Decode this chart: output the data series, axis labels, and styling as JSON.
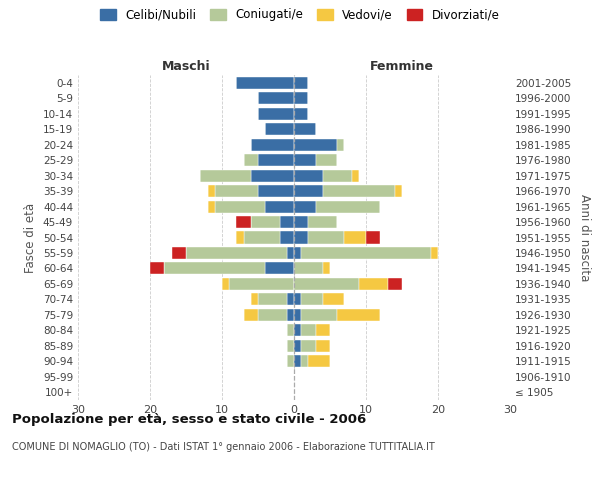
{
  "age_groups": [
    "100+",
    "95-99",
    "90-94",
    "85-89",
    "80-84",
    "75-79",
    "70-74",
    "65-69",
    "60-64",
    "55-59",
    "50-54",
    "45-49",
    "40-44",
    "35-39",
    "30-34",
    "25-29",
    "20-24",
    "15-19",
    "10-14",
    "5-9",
    "0-4"
  ],
  "birth_years": [
    "≤ 1905",
    "1906-1910",
    "1911-1915",
    "1916-1920",
    "1921-1925",
    "1926-1930",
    "1931-1935",
    "1936-1940",
    "1941-1945",
    "1946-1950",
    "1951-1955",
    "1956-1960",
    "1961-1965",
    "1966-1970",
    "1971-1975",
    "1976-1980",
    "1981-1985",
    "1986-1990",
    "1991-1995",
    "1996-2000",
    "2001-2005"
  ],
  "colors": {
    "celibi": "#3a6ea5",
    "coniugati": "#b5c99a",
    "vedovi": "#f5c842",
    "divorziati": "#cc2222"
  },
  "male": {
    "celibi": [
      0,
      0,
      0,
      0,
      0,
      1,
      1,
      0,
      4,
      1,
      2,
      2,
      4,
      5,
      6,
      5,
      6,
      4,
      5,
      5,
      8
    ],
    "coniugati": [
      0,
      0,
      1,
      1,
      1,
      4,
      4,
      9,
      14,
      14,
      5,
      4,
      7,
      6,
      7,
      2,
      0,
      0,
      0,
      0,
      0
    ],
    "vedovi": [
      0,
      0,
      0,
      0,
      0,
      2,
      1,
      1,
      0,
      0,
      1,
      0,
      1,
      1,
      0,
      0,
      0,
      0,
      0,
      0,
      0
    ],
    "divorziati": [
      0,
      0,
      0,
      0,
      0,
      0,
      0,
      0,
      2,
      2,
      0,
      2,
      0,
      0,
      0,
      0,
      0,
      0,
      0,
      0,
      0
    ]
  },
  "female": {
    "celibi": [
      0,
      0,
      1,
      1,
      1,
      1,
      1,
      0,
      0,
      1,
      2,
      2,
      3,
      4,
      4,
      3,
      6,
      3,
      2,
      2,
      2
    ],
    "coniugati": [
      0,
      0,
      1,
      2,
      2,
      5,
      3,
      9,
      4,
      18,
      5,
      4,
      9,
      10,
      4,
      3,
      1,
      0,
      0,
      0,
      0
    ],
    "vedovi": [
      0,
      0,
      3,
      2,
      2,
      6,
      3,
      4,
      1,
      1,
      3,
      0,
      0,
      1,
      1,
      0,
      0,
      0,
      0,
      0,
      0
    ],
    "divorziati": [
      0,
      0,
      0,
      0,
      0,
      0,
      0,
      2,
      0,
      0,
      2,
      0,
      0,
      0,
      0,
      0,
      0,
      0,
      0,
      0,
      0
    ]
  },
  "title": "Popolazione per età, sesso e stato civile - 2006",
  "subtitle": "COMUNE DI NOMAGLIO (TO) - Dati ISTAT 1° gennaio 2006 - Elaborazione TUTTITALIA.IT",
  "xlabel_left": "Maschi",
  "xlabel_right": "Femmine",
  "ylabel": "Fasce di età",
  "ylabel_right": "Anni di nascita",
  "xlim": 30,
  "legend_labels": [
    "Celibi/Nubili",
    "Coniugati/e",
    "Vedovi/e",
    "Divorziati/e"
  ],
  "background_color": "#ffffff",
  "grid_color": "#cccccc"
}
